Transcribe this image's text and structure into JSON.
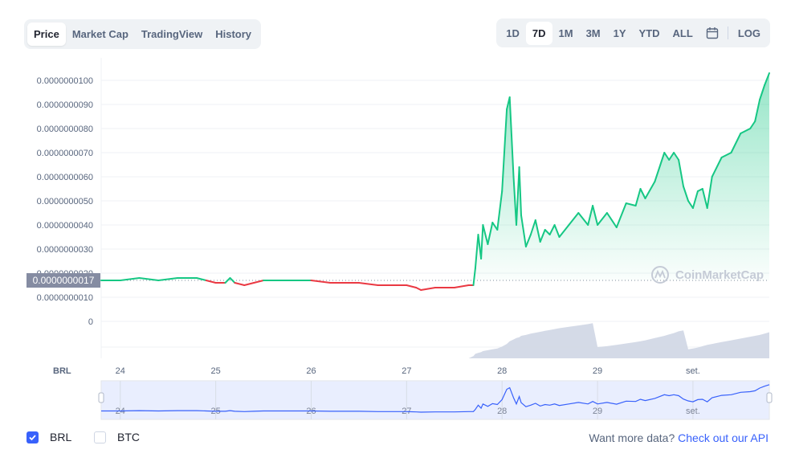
{
  "tabs": [
    "Price",
    "Market Cap",
    "TradingView",
    "History"
  ],
  "active_tab": "Price",
  "ranges": [
    "1D",
    "7D",
    "1M",
    "3M",
    "1Y",
    "YTD",
    "ALL"
  ],
  "active_range": "7D",
  "log_label": "LOG",
  "currency_label": "BRL",
  "current_price_label": "0.0000000017",
  "watermark": "CoinMarketCap",
  "footer": {
    "brl": "BRL",
    "btc": "BTC",
    "more_text": "Want more data?",
    "api_link": "Check out our API"
  },
  "colors": {
    "up": "#16c784",
    "down": "#ea3943",
    "volume": "#cfd6e4",
    "navigator": "#3861fb",
    "accent": "#3861fb"
  },
  "chart_data": {
    "type": "line",
    "x_labels": [
      "24",
      "25",
      "26",
      "27",
      "28",
      "29",
      "set."
    ],
    "y_ticks": [
      "0",
      "0.0000000010",
      "0.0000000020",
      "0.0000000030",
      "0.0000000040",
      "0.0000000050",
      "0.0000000060",
      "0.0000000070",
      "0.0000000080",
      "0.0000000090",
      "0.0000000100"
    ],
    "ylim": [
      0,
      1e-08
    ],
    "baseline": 1.7e-09,
    "x": [
      23.8,
      24.0,
      24.2,
      24.4,
      24.6,
      24.8,
      24.9,
      25.0,
      25.1,
      25.15,
      25.2,
      25.3,
      25.4,
      25.5,
      25.6,
      25.7,
      25.8,
      26.0,
      26.2,
      26.4,
      26.5,
      26.7,
      26.9,
      27.0,
      27.1,
      27.15,
      27.3,
      27.5,
      27.65,
      27.7,
      27.72,
      27.75,
      27.78,
      27.8,
      27.85,
      27.9,
      27.95,
      28.0,
      28.05,
      28.08,
      28.12,
      28.15,
      28.18,
      28.2,
      28.25,
      28.3,
      28.35,
      28.4,
      28.45,
      28.5,
      28.55,
      28.6,
      28.7,
      28.8,
      28.9,
      28.95,
      29.0,
      29.1,
      29.2,
      29.3,
      29.4,
      29.45,
      29.5,
      29.6,
      29.7,
      29.75,
      29.8,
      29.85,
      29.9,
      29.95,
      30.0,
      30.05,
      30.1,
      30.15,
      30.2,
      30.3,
      30.4,
      30.5,
      30.6,
      30.65,
      30.7,
      30.75,
      30.8
    ],
    "y": [
      1.7e-09,
      1.7e-09,
      1.8e-09,
      1.7e-09,
      1.8e-09,
      1.8e-09,
      1.7e-09,
      1.6e-09,
      1.6e-09,
      1.8e-09,
      1.6e-09,
      1.5e-09,
      1.6e-09,
      1.7e-09,
      1.7e-09,
      1.7e-09,
      1.7e-09,
      1.7e-09,
      1.6e-09,
      1.6e-09,
      1.6e-09,
      1.5e-09,
      1.5e-09,
      1.5e-09,
      1.4e-09,
      1.3e-09,
      1.4e-09,
      1.4e-09,
      1.5e-09,
      1.5e-09,
      2.2e-09,
      3.6e-09,
      2.6e-09,
      4e-09,
      3.2e-09,
      4.1e-09,
      3.8e-09,
      5.4e-09,
      8.8e-09,
      9.3e-09,
      6e-09,
      4e-09,
      6.4e-09,
      4.4e-09,
      3.1e-09,
      3.6e-09,
      4.2e-09,
      3.3e-09,
      3.8e-09,
      3.6e-09,
      4e-09,
      3.5e-09,
      4e-09,
      4.5e-09,
      4e-09,
      4.8e-09,
      4e-09,
      4.5e-09,
      3.9e-09,
      4.9e-09,
      4.8e-09,
      5.5e-09,
      5.1e-09,
      5.8e-09,
      7e-09,
      6.7e-09,
      7e-09,
      6.7e-09,
      5.6e-09,
      5e-09,
      4.7e-09,
      5.4e-09,
      5.5e-09,
      4.7e-09,
      6e-09,
      6.8e-09,
      7e-09,
      7.8e-09,
      8e-09,
      8.3e-09,
      9.2e-09,
      9.8e-09,
      1.03e-08
    ],
    "volume": [
      0,
      0,
      0,
      0,
      0,
      0,
      0,
      0,
      0,
      0,
      0,
      0,
      0,
      0,
      0,
      0,
      0,
      0,
      0,
      0,
      0,
      0,
      0,
      0,
      0,
      0,
      0,
      0,
      0,
      0.05,
      0.1,
      0.12,
      0.14,
      0.16,
      0.18,
      0.2,
      0.22,
      0.26,
      0.32,
      0.38,
      0.42,
      0.45,
      0.47,
      0.5,
      0.52,
      0.55,
      0.57,
      0.59,
      0.61,
      0.63,
      0.65,
      0.67,
      0.7,
      0.73,
      0.76,
      0.78,
      0.25,
      0.27,
      0.3,
      0.33,
      0.36,
      0.38,
      0.4,
      0.45,
      0.5,
      0.53,
      0.56,
      0.6,
      0.62,
      0.2,
      0.22,
      0.24,
      0.27,
      0.3,
      0.32,
      0.36,
      0.4,
      0.44,
      0.48,
      0.5,
      0.52,
      0.55,
      0.58
    ],
    "navigator_x_labels": [
      "24",
      "25",
      "26",
      "27",
      "28",
      "29",
      "set."
    ]
  }
}
